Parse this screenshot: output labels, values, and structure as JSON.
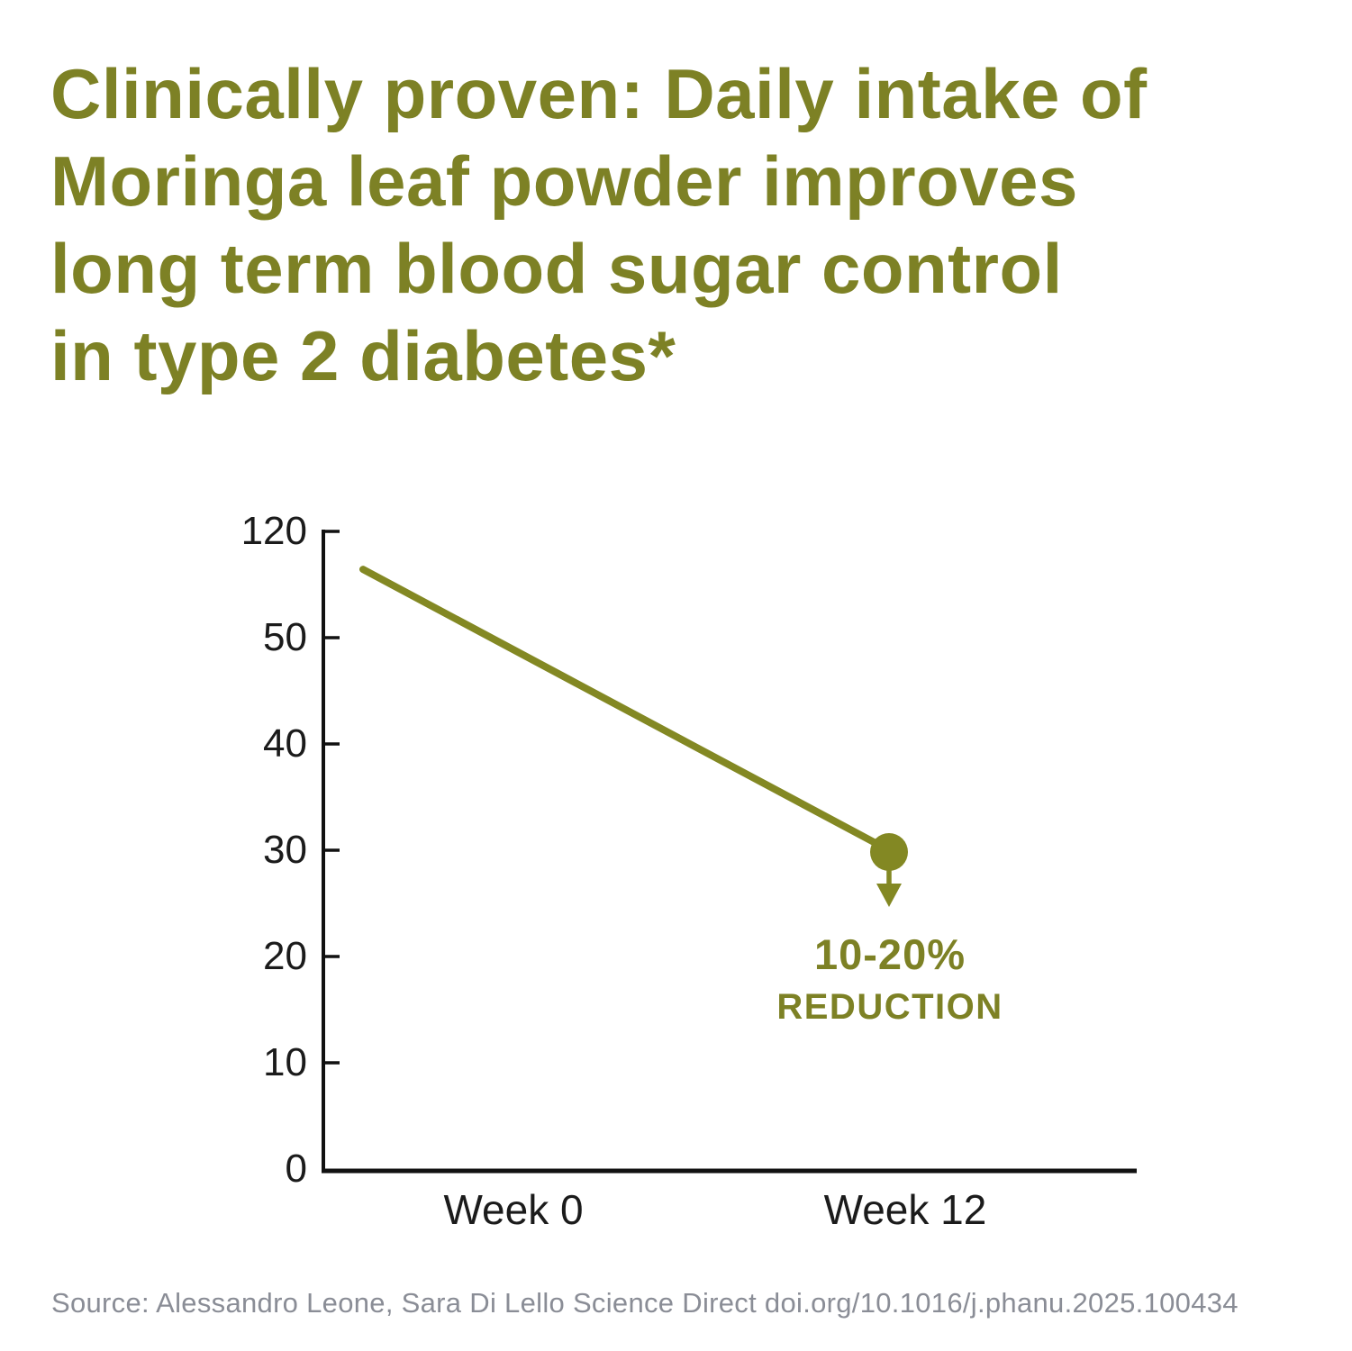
{
  "headline": {
    "lines": [
      "Clinically proven: Daily intake of",
      "Moringa leaf powder improves",
      "long term blood sugar control",
      "in type 2 diabetes*"
    ],
    "color": "#7D8125"
  },
  "chart_data": {
    "type": "line",
    "title": "",
    "categories": [
      "Week 0",
      "Week 12"
    ],
    "series": [
      {
        "name": "",
        "values": [
          95,
          30
        ]
      }
    ],
    "y_tick_labels": [
      "120",
      "50",
      "40",
      "30",
      "20",
      "10",
      "0"
    ],
    "y_tick_values": [
      120,
      50,
      40,
      30,
      20,
      10,
      0
    ],
    "ylabel": "",
    "xlabel": "",
    "grid": false,
    "legend_position": "none",
    "axis_note": "broken y-scale, ticks evenly spaced",
    "annotation": {
      "line1": "10-20%",
      "line2": "REDUCTION"
    },
    "colors": {
      "line": "#838823",
      "axis": "#111111",
      "annotation_text": "#7D8125"
    }
  },
  "source": {
    "text": "Source: Alessandro Leone, Sara Di Lello Science Direct doi.org/10.1016/j.phanu.2025.100434",
    "color": "#8A8D96"
  }
}
